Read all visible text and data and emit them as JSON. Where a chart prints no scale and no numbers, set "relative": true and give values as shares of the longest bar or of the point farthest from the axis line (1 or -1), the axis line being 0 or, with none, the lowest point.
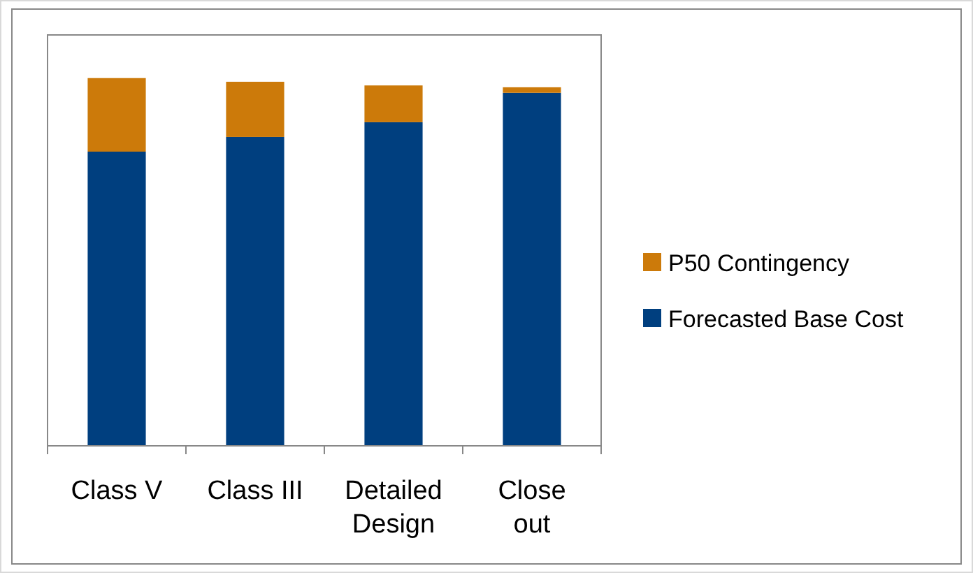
{
  "chart_data": {
    "type": "bar",
    "stacked": true,
    "relative": true,
    "legend": "right",
    "categories": [
      "Class V",
      "Class III",
      "Detailed Design",
      "Close out"
    ],
    "series": [
      {
        "name": "Forecasted Base Cost",
        "color": "#003f7f",
        "values": [
          0.8,
          0.84,
          0.88,
          0.96
        ]
      },
      {
        "name": "P50 Contingency",
        "color": "#cc7a0a",
        "values": [
          0.2,
          0.15,
          0.1,
          0.015
        ]
      }
    ]
  }
}
